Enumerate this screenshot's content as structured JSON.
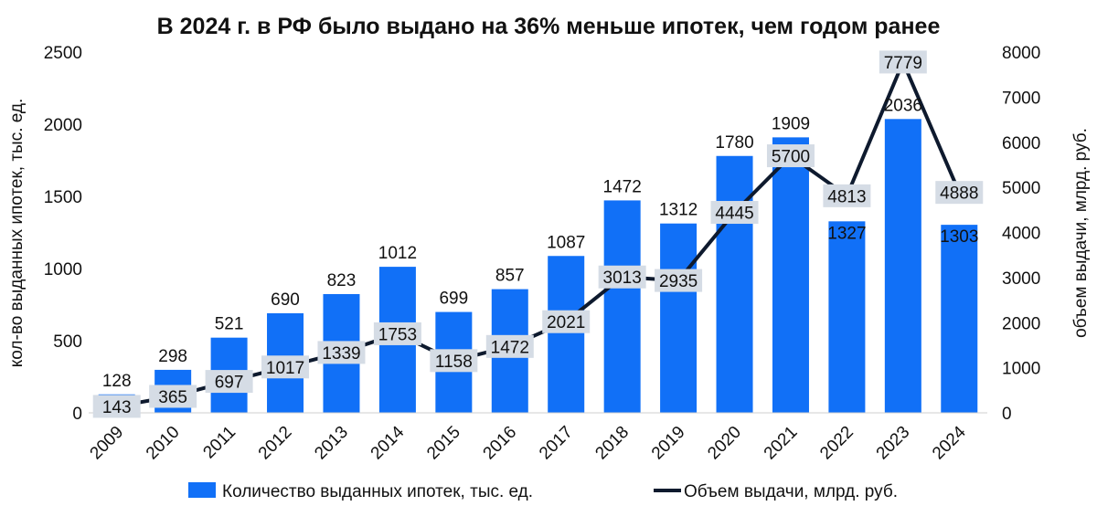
{
  "chart_data": {
    "type": "bar",
    "title": "В 2024 г. в РФ было выдано на 36% меньше ипотек, чем годом ранее",
    "categories": [
      "2009",
      "2010",
      "2011",
      "2012",
      "2013",
      "2014",
      "2015",
      "2016",
      "2017",
      "2018",
      "2019",
      "2020",
      "2021",
      "2022",
      "2023",
      "2024"
    ],
    "series": [
      {
        "name": "Количество выданных ипотек, тыс. ед.",
        "type": "bar",
        "axis": "left",
        "color": "#1170F7",
        "values": [
          128,
          298,
          521,
          690,
          823,
          1012,
          699,
          857,
          1087,
          1472,
          1312,
          1780,
          1909,
          1327,
          2036,
          1303
        ]
      },
      {
        "name": "Объем выдачи, млрд. руб.",
        "type": "line",
        "axis": "right",
        "color": "#0E1A2E",
        "values": [
          143,
          365,
          697,
          1017,
          1339,
          1753,
          1158,
          1472,
          2021,
          3013,
          2935,
          4445,
          5700,
          4813,
          7779,
          4888
        ]
      }
    ],
    "ylabel": "кол-во выданных ипотек, тыс. ед.",
    "y2label": "объем выдачи, млрд. руб.",
    "ylim": [
      0,
      2500
    ],
    "y2lim": [
      0,
      8000
    ],
    "yticks": [
      "0",
      "500",
      "1000",
      "1500",
      "2000",
      "2500"
    ],
    "y2ticks": [
      "0",
      "1000",
      "2000",
      "3000",
      "4000",
      "5000",
      "6000",
      "7000",
      "8000"
    ],
    "grid": false,
    "legend": "bottom",
    "label_box_color": "#D5DCE5"
  }
}
